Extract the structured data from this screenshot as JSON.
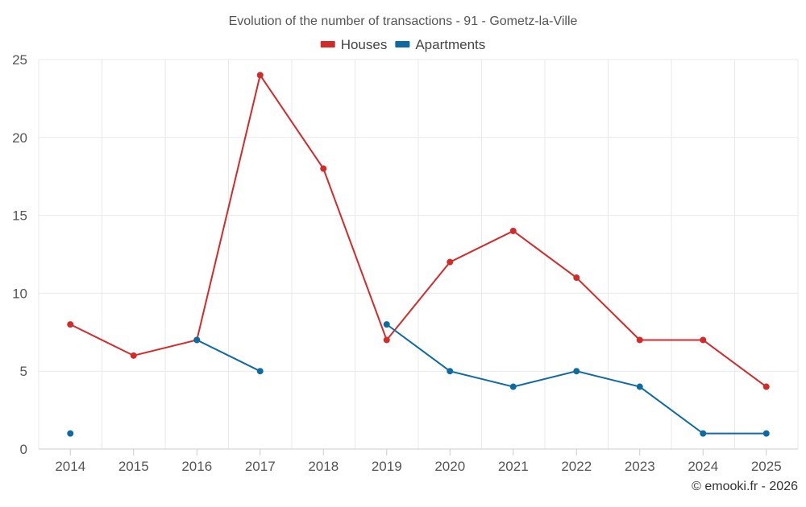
{
  "chart_data": {
    "type": "line",
    "title": "Evolution of the number of transactions - 91 - Gometz-la-Ville",
    "categories": [
      "2014",
      "2015",
      "2016",
      "2017",
      "2018",
      "2019",
      "2020",
      "2021",
      "2022",
      "2023",
      "2024",
      "2025"
    ],
    "ylim": [
      0,
      25
    ],
    "yticks": [
      0,
      5,
      10,
      15,
      20,
      25
    ],
    "yticks_labels": [
      "0",
      "5",
      "10",
      "15",
      "20",
      "25"
    ],
    "grid": true,
    "legend_position": "top-center",
    "series": [
      {
        "name": "Houses",
        "color": "#d32a2a",
        "values": [
          8,
          6,
          7,
          24,
          18,
          7,
          12,
          14,
          11,
          7,
          7,
          4
        ]
      },
      {
        "name": "Apartments",
        "color": "#0e6aa0",
        "values": [
          1,
          null,
          7,
          5,
          null,
          8,
          5,
          4,
          5,
          4,
          1,
          1
        ]
      }
    ],
    "credit": "© emooki.fr - 2026"
  }
}
